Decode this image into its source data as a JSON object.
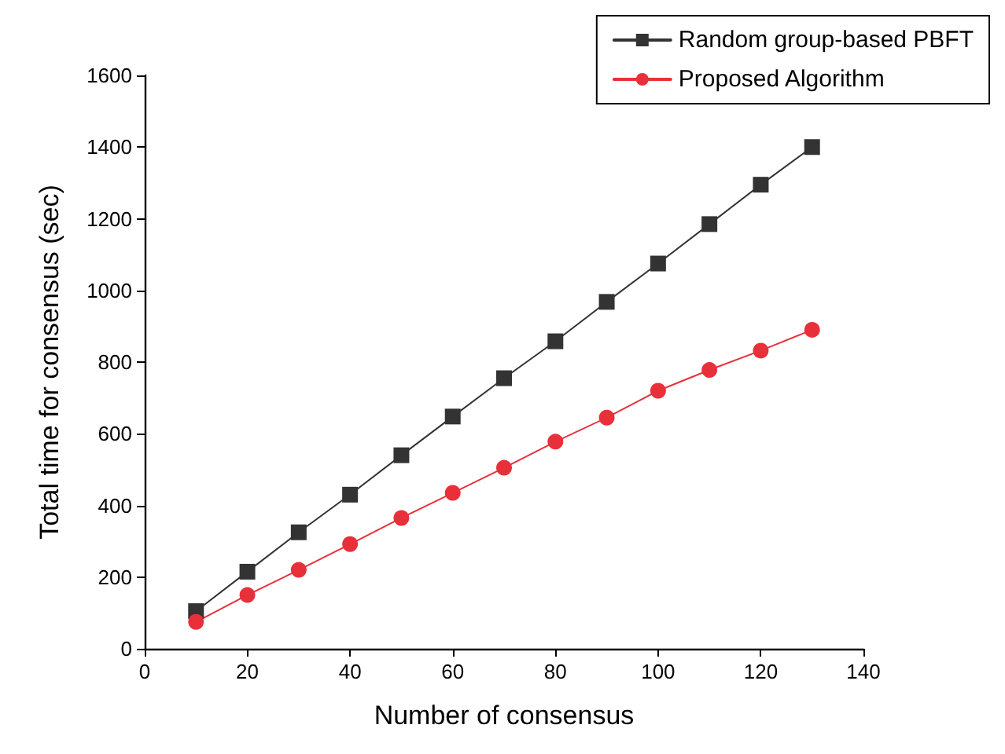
{
  "chart_data": {
    "type": "line",
    "xlabel": "Number of consensus",
    "ylabel": "Total time for consensus (sec)",
    "x": [
      10,
      20,
      30,
      40,
      50,
      60,
      70,
      80,
      90,
      100,
      110,
      120,
      130
    ],
    "xlim": [
      0,
      140
    ],
    "xticks": [
      0,
      20,
      40,
      60,
      80,
      100,
      120,
      140
    ],
    "ylim": [
      0,
      1600
    ],
    "yticks": [
      0,
      200,
      400,
      600,
      800,
      1000,
      1200,
      1400,
      1600
    ],
    "grid": false,
    "legend": "top right",
    "line_style": "solid",
    "series": [
      {
        "name": "Random group-based PBFT",
        "color": "#333333",
        "marker": "square",
        "values": [
          105,
          215,
          325,
          430,
          540,
          648,
          755,
          858,
          968,
          1075,
          1185,
          1295,
          1400
        ]
      },
      {
        "name": "Proposed Algorithm",
        "color": "#e8303a",
        "marker": "circle",
        "values": [
          75,
          150,
          220,
          292,
          365,
          435,
          505,
          578,
          645,
          720,
          778,
          832,
          890
        ]
      }
    ]
  }
}
